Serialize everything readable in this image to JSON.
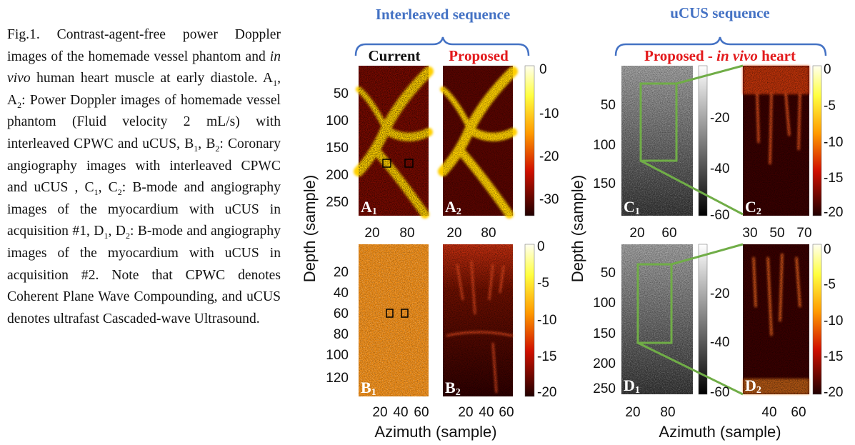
{
  "caption": {
    "parts": [
      "Fig.1. Contrast-agent-free power Doppler images of the homemade vessel phantom and ",
      "in vivo",
      " human heart muscle at early diastole. A",
      "1",
      ", A",
      "2",
      ": Power Doppler images of homemade vessel phantom (Fluid velocity 2 mL/s) with interleaved CPWC and uCUS, B",
      "1",
      ", B",
      "2",
      ": Coronary angiography images with interleaved CPWC and uCUS , C",
      "1",
      ", C",
      "2",
      ": B-mode and angiography images of the myocardium with uCUS in acquisition #1, D",
      "1",
      ", D",
      "2",
      ": B-mode and angiography images of the myocardium with uCUS in acquisition #2. Note that CPWC denotes Coherent Plane Wave Compounding, and uCUS denotes ultrafast Cascaded-wave Ultrasound."
    ]
  },
  "figure": {
    "interleaved": {
      "title": "Interleaved sequence",
      "current": "Current",
      "proposed": "Proposed"
    },
    "ucus": {
      "title": "uCUS sequence",
      "subtitle": [
        "Proposed - ",
        "in vivo",
        " heart"
      ]
    },
    "axis_labels": {
      "depth": "Depth (sample)",
      "azimuth": "Azimuth (sample)"
    },
    "panel_labels": [
      {
        "letter": "A",
        "sub": "1"
      },
      {
        "letter": "A",
        "sub": "2"
      },
      {
        "letter": "B",
        "sub": "1"
      },
      {
        "letter": "B",
        "sub": "2"
      },
      {
        "letter": "C",
        "sub": "1"
      },
      {
        "letter": "C",
        "sub": "2"
      },
      {
        "letter": "D",
        "sub": "1"
      },
      {
        "letter": "D",
        "sub": "2"
      }
    ],
    "ticks": {
      "a_y": [
        50,
        100,
        150,
        200,
        250
      ],
      "a1_x": [
        20,
        80
      ],
      "a2_x": [
        20,
        80
      ],
      "a_bar": [
        0,
        -10,
        -20,
        -30
      ],
      "b_y": [
        20,
        40,
        60,
        80,
        100,
        120
      ],
      "b1_x": [
        20,
        40,
        60
      ],
      "b2_x": [
        20,
        40,
        60
      ],
      "b_bar": [
        0,
        -5,
        -10,
        -15,
        -20
      ],
      "c_y": [
        50,
        100,
        150
      ],
      "c1_x": [
        20,
        60
      ],
      "c1_bar": [
        -20,
        -40,
        -60
      ],
      "c2_x": [
        30,
        50,
        70
      ],
      "c2_bar": [
        0,
        -5,
        -10,
        -15,
        -20
      ],
      "d_y": [
        50,
        100,
        150,
        200,
        250
      ],
      "d1_x": [
        20,
        80
      ],
      "d1_bar": [
        -20,
        -40,
        -60
      ],
      "d2_x": [
        40,
        60
      ],
      "d2_bar": [
        0,
        -5,
        -10,
        -15,
        -20
      ]
    }
  }
}
